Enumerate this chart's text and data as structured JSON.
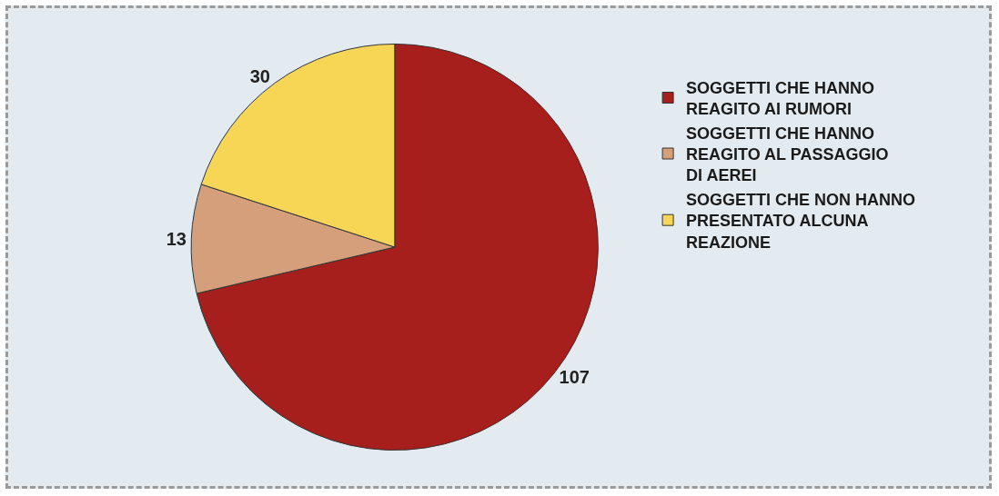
{
  "chart_data": {
    "type": "pie",
    "categories": [
      "SOGGETTI CHE HANNO REAGITO AI RUMORI",
      "SOGGETTI CHE HANNO REAGITO AL PASSAGGIO DI AEREI",
      "SOGGETTI CHE NON HANNO PRESENTATO ALCUNA REAZIONE"
    ],
    "values": [
      107,
      13,
      30
    ],
    "colors": [
      "#a61f1d",
      "#d59f7c",
      "#f7d555"
    ],
    "data_labels": true,
    "legend": "top right"
  }
}
